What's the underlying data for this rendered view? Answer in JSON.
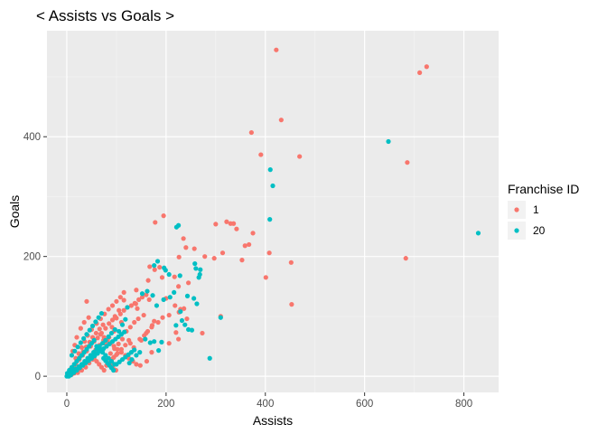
{
  "chart_data": {
    "type": "scatter",
    "title": "< Assists vs Goals >",
    "xlabel": "Assists",
    "ylabel": "Goals",
    "xlim": [
      -40,
      870
    ],
    "ylim": [
      -27,
      577
    ],
    "x_ticks": [
      0,
      200,
      400,
      600,
      800
    ],
    "y_ticks": [
      0,
      200,
      400
    ],
    "grid": true,
    "legend": {
      "title": "Franchise ID",
      "placement": "right"
    },
    "series": [
      {
        "name": "1",
        "color": "#F8766D",
        "points": [
          [
            422,
            545
          ],
          [
            725,
            517
          ],
          [
            711,
            507
          ],
          [
            432,
            428
          ],
          [
            372,
            407
          ],
          [
            391,
            370
          ],
          [
            469,
            367
          ],
          [
            686,
            357
          ],
          [
            195,
            268
          ],
          [
            178,
            257
          ],
          [
            300,
            254
          ],
          [
            322,
            258
          ],
          [
            330,
            255
          ],
          [
            336,
            255
          ],
          [
            342,
            246
          ],
          [
            375,
            239
          ],
          [
            367,
            220
          ],
          [
            359,
            218
          ],
          [
            235,
            230
          ],
          [
            240,
            215
          ],
          [
            257,
            213
          ],
          [
            314,
            206
          ],
          [
            278,
            200
          ],
          [
            297,
            197
          ],
          [
            353,
            194
          ],
          [
            408,
            206
          ],
          [
            452,
            190
          ],
          [
            683,
            197
          ],
          [
            226,
            199
          ],
          [
            187,
            182
          ],
          [
            167,
            183
          ],
          [
            177,
            178
          ],
          [
            401,
            165
          ],
          [
            217,
            166
          ],
          [
            192,
            165
          ],
          [
            164,
            160
          ],
          [
            140,
            144
          ],
          [
            225,
            150
          ],
          [
            245,
            156
          ],
          [
            453,
            120
          ],
          [
            200,
            130
          ],
          [
            166,
            128
          ],
          [
            115,
            127
          ],
          [
            139,
            121
          ],
          [
            142,
            113
          ],
          [
            229,
            112
          ],
          [
            226,
            107
          ],
          [
            206,
            102
          ],
          [
            193,
            98
          ],
          [
            176,
            92
          ],
          [
            242,
            96
          ],
          [
            236,
            113
          ],
          [
            218,
            118
          ],
          [
            220,
            73
          ],
          [
            273,
            72
          ],
          [
            310,
            100
          ],
          [
            225,
            62
          ],
          [
            206,
            55
          ],
          [
            171,
            40
          ],
          [
            161,
            25
          ],
          [
            150,
            60
          ],
          [
            160,
            72
          ],
          [
            172,
            85
          ],
          [
            184,
            90
          ],
          [
            97,
            100
          ],
          [
            105,
            110
          ],
          [
            110,
            90
          ],
          [
            91,
            82
          ],
          [
            95,
            75
          ],
          [
            85,
            65
          ],
          [
            77,
            55
          ],
          [
            65,
            48
          ],
          [
            58,
            38
          ],
          [
            52,
            28
          ],
          [
            45,
            22
          ],
          [
            38,
            15
          ],
          [
            30,
            10
          ],
          [
            22,
            6
          ],
          [
            15,
            5
          ],
          [
            10,
            3
          ],
          [
            6,
            2
          ],
          [
            3,
            1
          ],
          [
            8,
            8
          ],
          [
            12,
            14
          ],
          [
            18,
            20
          ],
          [
            25,
            28
          ],
          [
            32,
            35
          ],
          [
            40,
            42
          ],
          [
            48,
            50
          ],
          [
            55,
            58
          ],
          [
            62,
            64
          ],
          [
            70,
            72
          ],
          [
            78,
            80
          ],
          [
            85,
            88
          ],
          [
            92,
            94
          ],
          [
            100,
            97
          ],
          [
            108,
            104
          ],
          [
            115,
            110
          ],
          [
            122,
            115
          ],
          [
            130,
            118
          ],
          [
            137,
            122
          ],
          [
            145,
            128
          ],
          [
            152,
            132
          ],
          [
            160,
            136
          ],
          [
            68,
            70
          ],
          [
            75,
            65
          ],
          [
            82,
            60
          ],
          [
            88,
            55
          ],
          [
            95,
            50
          ],
          [
            102,
            45
          ],
          [
            110,
            40
          ],
          [
            118,
            35
          ],
          [
            125,
            30
          ],
          [
            133,
            25
          ],
          [
            140,
            20
          ],
          [
            148,
            18
          ],
          [
            44,
            98
          ],
          [
            35,
            90
          ],
          [
            28,
            80
          ],
          [
            20,
            65
          ],
          [
            16,
            52
          ],
          [
            12,
            42
          ],
          [
            40,
            125
          ],
          [
            55,
            30
          ],
          [
            60,
            25
          ],
          [
            65,
            20
          ],
          [
            70,
            15
          ],
          [
            75,
            10
          ],
          [
            80,
            18
          ],
          [
            85,
            22
          ],
          [
            90,
            28
          ],
          [
            95,
            32
          ],
          [
            100,
            36
          ],
          [
            60,
            88
          ],
          [
            50,
            78
          ],
          [
            42,
            68
          ],
          [
            36,
            58
          ],
          [
            30,
            48
          ],
          [
            24,
            38
          ],
          [
            18,
            30
          ],
          [
            26,
            12
          ],
          [
            34,
            18
          ],
          [
            42,
            24
          ],
          [
            50,
            34
          ],
          [
            58,
            44
          ],
          [
            66,
            52
          ],
          [
            74,
            60
          ],
          [
            120,
            75
          ],
          [
            128,
            82
          ],
          [
            136,
            90
          ],
          [
            144,
            96
          ],
          [
            155,
            102
          ],
          [
            112,
            62
          ],
          [
            104,
            54
          ],
          [
            96,
            46
          ],
          [
            88,
            38
          ],
          [
            80,
            30
          ],
          [
            20,
            25
          ],
          [
            27,
            33
          ],
          [
            33,
            41
          ],
          [
            39,
            49
          ],
          [
            46,
            57
          ],
          [
            52,
            65
          ],
          [
            59,
            72
          ],
          [
            66,
            79
          ],
          [
            73,
            86
          ],
          [
            14,
            16
          ],
          [
            8,
            12
          ],
          [
            5,
            7
          ],
          [
            2,
            3
          ],
          [
            1,
            1
          ],
          [
            4,
            5
          ],
          [
            135,
            48
          ],
          [
            128,
            55
          ],
          [
            147,
            62
          ],
          [
            156,
            68
          ],
          [
            163,
            75
          ],
          [
            171,
            82
          ],
          [
            115,
            140
          ],
          [
            108,
            132
          ],
          [
            100,
            125
          ],
          [
            92,
            118
          ],
          [
            84,
            112
          ],
          [
            76,
            104
          ],
          [
            68,
            96
          ],
          [
            125,
            60
          ],
          [
            118,
            52
          ],
          [
            110,
            45
          ],
          [
            102,
            38
          ],
          [
            94,
            31
          ],
          [
            88,
            18
          ],
          [
            93,
            14
          ],
          [
            99,
            10
          ]
        ]
      },
      {
        "name": "20",
        "color": "#00BFC4",
        "points": [
          [
            648,
            392
          ],
          [
            829,
            239
          ],
          [
            410,
            345
          ],
          [
            415,
            318
          ],
          [
            409,
            262
          ],
          [
            225,
            252
          ],
          [
            221,
            249
          ],
          [
            183,
            192
          ],
          [
            176,
            185
          ],
          [
            196,
            181
          ],
          [
            199,
            177
          ],
          [
            206,
            170
          ],
          [
            228,
            168
          ],
          [
            258,
            188
          ],
          [
            260,
            180
          ],
          [
            269,
            178
          ],
          [
            268,
            170
          ],
          [
            266,
            165
          ],
          [
            243,
            134
          ],
          [
            256,
            130
          ],
          [
            262,
            121
          ],
          [
            216,
            140
          ],
          [
            208,
            132
          ],
          [
            195,
            128
          ],
          [
            181,
            118
          ],
          [
            173,
            135
          ],
          [
            162,
            142
          ],
          [
            152,
            138
          ],
          [
            229,
            108
          ],
          [
            232,
            93
          ],
          [
            238,
            86
          ],
          [
            220,
            85
          ],
          [
            245,
            78
          ],
          [
            252,
            77
          ],
          [
            191,
            57
          ],
          [
            185,
            43
          ],
          [
            176,
            58
          ],
          [
            168,
            56
          ],
          [
            158,
            62
          ],
          [
            147,
            40
          ],
          [
            140,
            35
          ],
          [
            131,
            28
          ],
          [
            126,
            22
          ],
          [
            288,
            30
          ],
          [
            310,
            98
          ],
          [
            122,
            115
          ],
          [
            118,
            95
          ],
          [
            112,
            86
          ],
          [
            105,
            75
          ],
          [
            97,
            78
          ],
          [
            90,
            72
          ],
          [
            84,
            66
          ],
          [
            78,
            60
          ],
          [
            72,
            55
          ],
          [
            66,
            50
          ],
          [
            60,
            45
          ],
          [
            54,
            40
          ],
          [
            48,
            35
          ],
          [
            42,
            30
          ],
          [
            36,
            25
          ],
          [
            30,
            20
          ],
          [
            24,
            16
          ],
          [
            18,
            12
          ],
          [
            12,
            8
          ],
          [
            6,
            4
          ],
          [
            2,
            2
          ],
          [
            4,
            0
          ],
          [
            8,
            2
          ],
          [
            14,
            6
          ],
          [
            20,
            10
          ],
          [
            26,
            14
          ],
          [
            32,
            18
          ],
          [
            38,
            22
          ],
          [
            44,
            26
          ],
          [
            50,
            30
          ],
          [
            56,
            34
          ],
          [
            62,
            38
          ],
          [
            68,
            42
          ],
          [
            74,
            46
          ],
          [
            80,
            50
          ],
          [
            86,
            54
          ],
          [
            92,
            58
          ],
          [
            98,
            62
          ],
          [
            104,
            66
          ],
          [
            110,
            70
          ],
          [
            116,
            74
          ],
          [
            70,
            105
          ],
          [
            64,
            98
          ],
          [
            58,
            91
          ],
          [
            52,
            84
          ],
          [
            46,
            77
          ],
          [
            40,
            70
          ],
          [
            34,
            63
          ],
          [
            28,
            56
          ],
          [
            22,
            49
          ],
          [
            16,
            42
          ],
          [
            10,
            35
          ],
          [
            74,
            30
          ],
          [
            78,
            26
          ],
          [
            82,
            22
          ],
          [
            86,
            18
          ],
          [
            90,
            14
          ],
          [
            94,
            10
          ],
          [
            100,
            20
          ],
          [
            106,
            24
          ],
          [
            112,
            28
          ],
          [
            118,
            32
          ],
          [
            124,
            36
          ],
          [
            130,
            40
          ],
          [
            136,
            44
          ],
          [
            55,
            60
          ],
          [
            50,
            55
          ],
          [
            45,
            50
          ],
          [
            40,
            45
          ],
          [
            35,
            40
          ],
          [
            30,
            35
          ],
          [
            25,
            30
          ],
          [
            20,
            25
          ],
          [
            15,
            20
          ],
          [
            10,
            15
          ],
          [
            5,
            10
          ],
          [
            1,
            5
          ],
          [
            0,
            0
          ],
          [
            3,
            3
          ],
          [
            7,
            7
          ],
          [
            11,
            11
          ],
          [
            60,
            50
          ],
          [
            66,
            45
          ],
          [
            72,
            40
          ],
          [
            78,
            35
          ],
          [
            84,
            30
          ],
          [
            90,
            25
          ],
          [
            96,
            20
          ]
        ]
      }
    ]
  }
}
